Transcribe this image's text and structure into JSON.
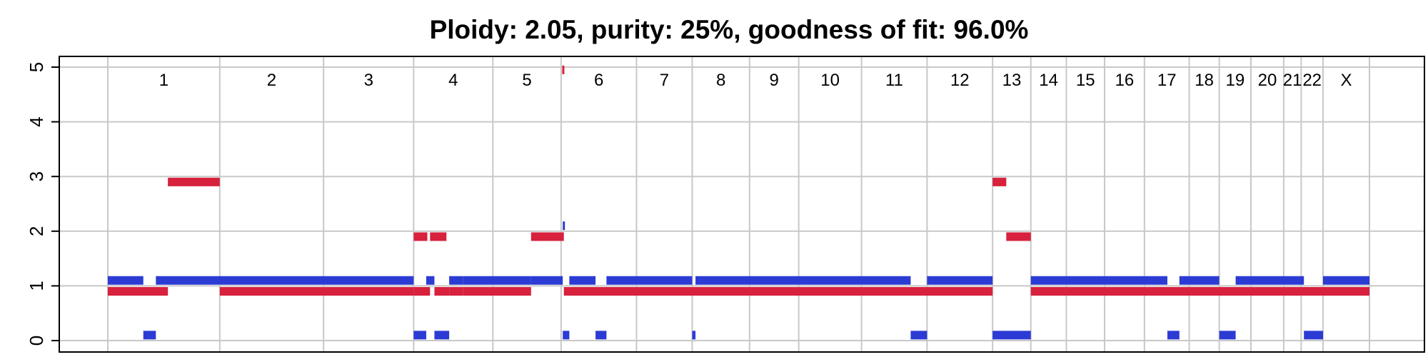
{
  "chart_data": {
    "type": "segments",
    "title": "Ploidy: 2.05, purity: 25%, goodness of fit: 96.0%",
    "xlabel": "",
    "ylabel": "",
    "ylim": [
      0,
      5
    ],
    "yticks": [
      0,
      1,
      2,
      3,
      4,
      5
    ],
    "grid": true,
    "colors": {
      "major": "#d7213d",
      "minor": "#2c3bd4",
      "grid": "#c8c8c8",
      "frame": "#000000"
    },
    "x_units": "genome position (Mb)",
    "genome_end": 2310,
    "chromosomes": [
      {
        "name": "1",
        "start": 0,
        "end": 205
      },
      {
        "name": "2",
        "start": 205,
        "end": 395
      },
      {
        "name": "3",
        "start": 395,
        "end": 560
      },
      {
        "name": "4",
        "start": 560,
        "end": 705
      },
      {
        "name": "5",
        "start": 705,
        "end": 830
      },
      {
        "name": "6",
        "start": 830,
        "end": 968
      },
      {
        "name": "7",
        "start": 968,
        "end": 1070
      },
      {
        "name": "8",
        "start": 1070,
        "end": 1175
      },
      {
        "name": "9",
        "start": 1175,
        "end": 1265
      },
      {
        "name": "10",
        "start": 1265,
        "end": 1380
      },
      {
        "name": "11",
        "start": 1380,
        "end": 1500
      },
      {
        "name": "12",
        "start": 1500,
        "end": 1620
      },
      {
        "name": "13",
        "start": 1620,
        "end": 1690
      },
      {
        "name": "14",
        "start": 1690,
        "end": 1755
      },
      {
        "name": "15",
        "start": 1755,
        "end": 1825
      },
      {
        "name": "16",
        "start": 1825,
        "end": 1898
      },
      {
        "name": "17",
        "start": 1898,
        "end": 1980
      },
      {
        "name": "18",
        "start": 1980,
        "end": 2035
      },
      {
        "name": "19",
        "start": 2035,
        "end": 2093
      },
      {
        "name": "20",
        "start": 2093,
        "end": 2153
      },
      {
        "name": "21",
        "start": 2153,
        "end": 2185
      },
      {
        "name": "22",
        "start": 2185,
        "end": 2225
      },
      {
        "name": "X",
        "start": 2225,
        "end": 2310
      }
    ],
    "series": [
      {
        "color": "#d7213d",
        "segments": [
          {
            "start": 0,
            "end": 110,
            "value": 0.9
          },
          {
            "start": 110,
            "end": 205,
            "value": 2.9
          },
          {
            "start": 205,
            "end": 560,
            "value": 0.9
          },
          {
            "start": 560,
            "end": 590,
            "value": 0.9
          },
          {
            "start": 598,
            "end": 625,
            "value": 0.9
          },
          {
            "start": 560,
            "end": 585,
            "value": 1.9
          },
          {
            "start": 590,
            "end": 620,
            "value": 1.9
          },
          {
            "start": 625,
            "end": 650,
            "value": 0.9
          },
          {
            "start": 650,
            "end": 775,
            "value": 0.9
          },
          {
            "start": 775,
            "end": 835,
            "value": 1.9
          },
          {
            "start": 835,
            "end": 1620,
            "value": 0.9
          },
          {
            "start": 1620,
            "end": 1645,
            "value": 2.9
          },
          {
            "start": 1645,
            "end": 1690,
            "value": 1.9
          },
          {
            "start": 1690,
            "end": 2310,
            "value": 0.9
          },
          {
            "start": 832,
            "end": 835,
            "value": 4.95
          }
        ]
      },
      {
        "color": "#2c3bd4",
        "segments": [
          {
            "start": 0,
            "end": 65,
            "value": 1.1
          },
          {
            "start": 65,
            "end": 88,
            "value": 0.1
          },
          {
            "start": 88,
            "end": 560,
            "value": 1.1
          },
          {
            "start": 560,
            "end": 583,
            "value": 0.1
          },
          {
            "start": 583,
            "end": 598,
            "value": 1.1
          },
          {
            "start": 598,
            "end": 625,
            "value": 0.1
          },
          {
            "start": 625,
            "end": 650,
            "value": 1.1
          },
          {
            "start": 650,
            "end": 775,
            "value": 1.1
          },
          {
            "start": 775,
            "end": 833,
            "value": 1.1
          },
          {
            "start": 833,
            "end": 836,
            "value": 2.1
          },
          {
            "start": 833,
            "end": 845,
            "value": 0.1
          },
          {
            "start": 845,
            "end": 893,
            "value": 1.1
          },
          {
            "start": 893,
            "end": 913,
            "value": 0.1
          },
          {
            "start": 913,
            "end": 1070,
            "value": 1.1
          },
          {
            "start": 1070,
            "end": 1076,
            "value": 0.1
          },
          {
            "start": 1076,
            "end": 1470,
            "value": 1.1
          },
          {
            "start": 1470,
            "end": 1500,
            "value": 0.1
          },
          {
            "start": 1500,
            "end": 1620,
            "value": 1.1
          },
          {
            "start": 1620,
            "end": 1690,
            "value": 0.1
          },
          {
            "start": 1690,
            "end": 1940,
            "value": 1.1
          },
          {
            "start": 1940,
            "end": 1962,
            "value": 0.1
          },
          {
            "start": 1962,
            "end": 2035,
            "value": 1.1
          },
          {
            "start": 2035,
            "end": 2065,
            "value": 0.1
          },
          {
            "start": 2065,
            "end": 2190,
            "value": 1.1
          },
          {
            "start": 2190,
            "end": 2225,
            "value": 0.1
          },
          {
            "start": 2225,
            "end": 2310,
            "value": 1.1
          }
        ]
      }
    ]
  }
}
